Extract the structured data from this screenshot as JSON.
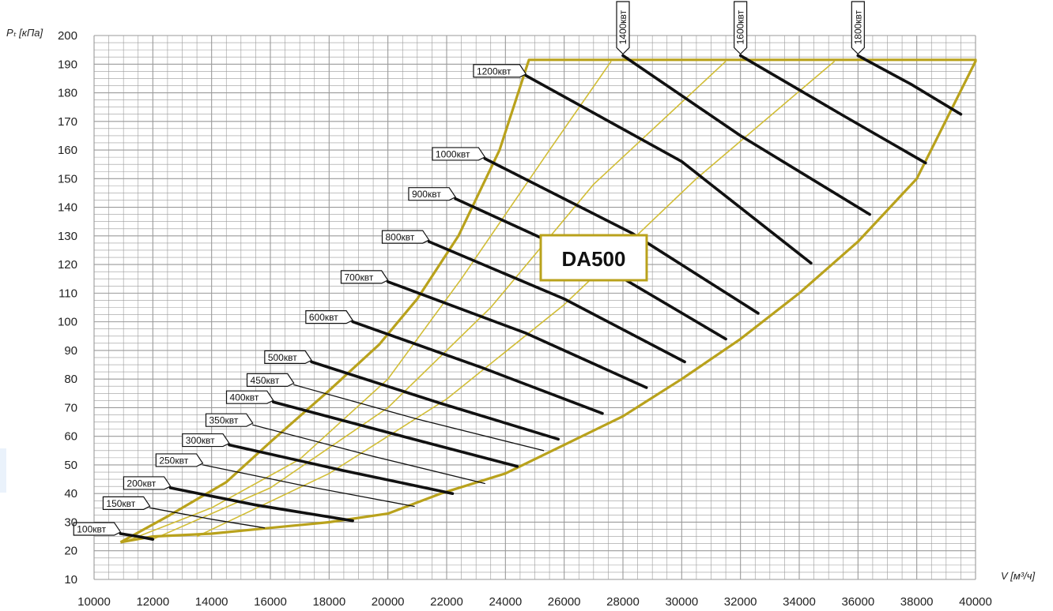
{
  "chart_data": {
    "type": "line",
    "title": "",
    "model_label": "DA500",
    "xlabel": "V [м³/ч]",
    "ylabel": "Pₜ [кПа]",
    "xlim": [
      10000,
      40000
    ],
    "ylim": [
      10,
      200
    ],
    "x_ticks": [
      "10000",
      "12000",
      "14000",
      "16000",
      "18000",
      "20000",
      "22000",
      "24000",
      "26000",
      "28000",
      "30000",
      "32000",
      "34000",
      "36000",
      "38000",
      "40000"
    ],
    "y_ticks": [
      "10",
      "20",
      "30",
      "40",
      "50",
      "60",
      "70",
      "80",
      "90",
      "100",
      "110",
      "120",
      "130",
      "140",
      "150",
      "160",
      "170",
      "180",
      "190",
      "200"
    ],
    "grid": true,
    "colors": {
      "envelope": "#b9a21c",
      "guide": "#d1bd35",
      "power": "#111111",
      "grid": "#9a9a9a"
    },
    "envelope": {
      "points": [
        [
          10900,
          23
        ],
        [
          12000,
          25
        ],
        [
          14000,
          26
        ],
        [
          16000,
          28
        ],
        [
          18000,
          30
        ],
        [
          20000,
          33
        ],
        [
          21800,
          40
        ],
        [
          24000,
          47
        ],
        [
          26000,
          57
        ],
        [
          28000,
          67
        ],
        [
          30000,
          80
        ],
        [
          32000,
          94
        ],
        [
          34000,
          110
        ],
        [
          36000,
          128
        ],
        [
          38000,
          150
        ],
        [
          40000,
          191
        ],
        [
          40000,
          191.5
        ],
        [
          24800,
          191.5
        ],
        [
          23800,
          160
        ],
        [
          22400,
          130
        ],
        [
          21000,
          108
        ],
        [
          19700,
          92
        ],
        [
          18000,
          76
        ],
        [
          16000,
          58
        ],
        [
          14500,
          44
        ],
        [
          12500,
          32
        ],
        [
          10900,
          23
        ]
      ]
    },
    "guide_lines": [
      {
        "points": [
          [
            11000,
            23
          ],
          [
            14000,
            35
          ],
          [
            17000,
            52
          ],
          [
            20000,
            80
          ],
          [
            22500,
            115
          ],
          [
            25500,
            160
          ],
          [
            27600,
            191
          ]
        ]
      },
      {
        "points": [
          [
            12000,
            24
          ],
          [
            16000,
            42
          ],
          [
            20000,
            70
          ],
          [
            23500,
            105
          ],
          [
            27000,
            148
          ],
          [
            31500,
            191
          ]
        ]
      },
      {
        "points": [
          [
            13500,
            25
          ],
          [
            18000,
            47
          ],
          [
            22000,
            73
          ],
          [
            26000,
            106
          ],
          [
            30500,
            150
          ],
          [
            35200,
            191
          ]
        ]
      }
    ],
    "series": [
      {
        "name": "100квт",
        "bold": true,
        "points": [
          [
            10900,
            26
          ],
          [
            11500,
            25
          ],
          [
            12000,
            24
          ]
        ]
      },
      {
        "name": "150квт",
        "bold": false,
        "points": [
          [
            11900,
            35
          ],
          [
            14000,
            31
          ],
          [
            15800,
            28
          ]
        ]
      },
      {
        "name": "200квт",
        "bold": true,
        "points": [
          [
            12600,
            42
          ],
          [
            15500,
            36
          ],
          [
            18800,
            30.5
          ]
        ]
      },
      {
        "name": "250квт",
        "bold": false,
        "points": [
          [
            13700,
            50
          ],
          [
            17000,
            43
          ],
          [
            20900,
            35.5
          ]
        ]
      },
      {
        "name": "300квт",
        "bold": true,
        "points": [
          [
            14600,
            57
          ],
          [
            18500,
            48
          ],
          [
            22200,
            40
          ]
        ]
      },
      {
        "name": "350квт",
        "bold": false,
        "points": [
          [
            15400,
            64
          ],
          [
            19500,
            53
          ],
          [
            23300,
            43.5
          ]
        ]
      },
      {
        "name": "400квт",
        "bold": true,
        "points": [
          [
            16100,
            72
          ],
          [
            20500,
            60
          ],
          [
            24400,
            49.5
          ]
        ]
      },
      {
        "name": "450квт",
        "bold": false,
        "points": [
          [
            16800,
            78
          ],
          [
            21000,
            66
          ],
          [
            25300,
            55
          ]
        ]
      },
      {
        "name": "500квт",
        "bold": true,
        "points": [
          [
            17400,
            86
          ],
          [
            21800,
            71.5
          ],
          [
            25800,
            59
          ]
        ]
      },
      {
        "name": "600квт",
        "bold": true,
        "points": [
          [
            18800,
            100
          ],
          [
            23200,
            84
          ],
          [
            27300,
            68
          ]
        ]
      },
      {
        "name": "700квт",
        "bold": true,
        "points": [
          [
            20000,
            114
          ],
          [
            24700,
            96
          ],
          [
            28800,
            77
          ]
        ]
      },
      {
        "name": "800квт",
        "bold": true,
        "points": [
          [
            21400,
            128
          ],
          [
            26000,
            108
          ],
          [
            30100,
            86
          ]
        ]
      },
      {
        "name": "900квт",
        "bold": true,
        "points": [
          [
            22300,
            143
          ],
          [
            27200,
            120
          ],
          [
            31500,
            94
          ]
        ]
      },
      {
        "name": "1000квт",
        "bold": true,
        "points": [
          [
            23300,
            157
          ],
          [
            28300,
            131
          ],
          [
            32600,
            103
          ]
        ]
      },
      {
        "name": "1200квт",
        "bold": true,
        "points": [
          [
            24700,
            186
          ],
          [
            30000,
            156
          ],
          [
            34400,
            120.5
          ]
        ]
      },
      {
        "name": "1400квт",
        "bold": true,
        "points": [
          [
            28000,
            193
          ],
          [
            32000,
            165
          ],
          [
            36400,
            137.5
          ]
        ]
      },
      {
        "name": "1600квт",
        "bold": true,
        "points": [
          [
            32000,
            193
          ],
          [
            35500,
            172
          ],
          [
            38300,
            155.5
          ]
        ]
      },
      {
        "name": "1800квт",
        "bold": true,
        "points": [
          [
            36000,
            193
          ],
          [
            37800,
            183
          ],
          [
            39500,
            172.5
          ]
        ]
      }
    ]
  }
}
